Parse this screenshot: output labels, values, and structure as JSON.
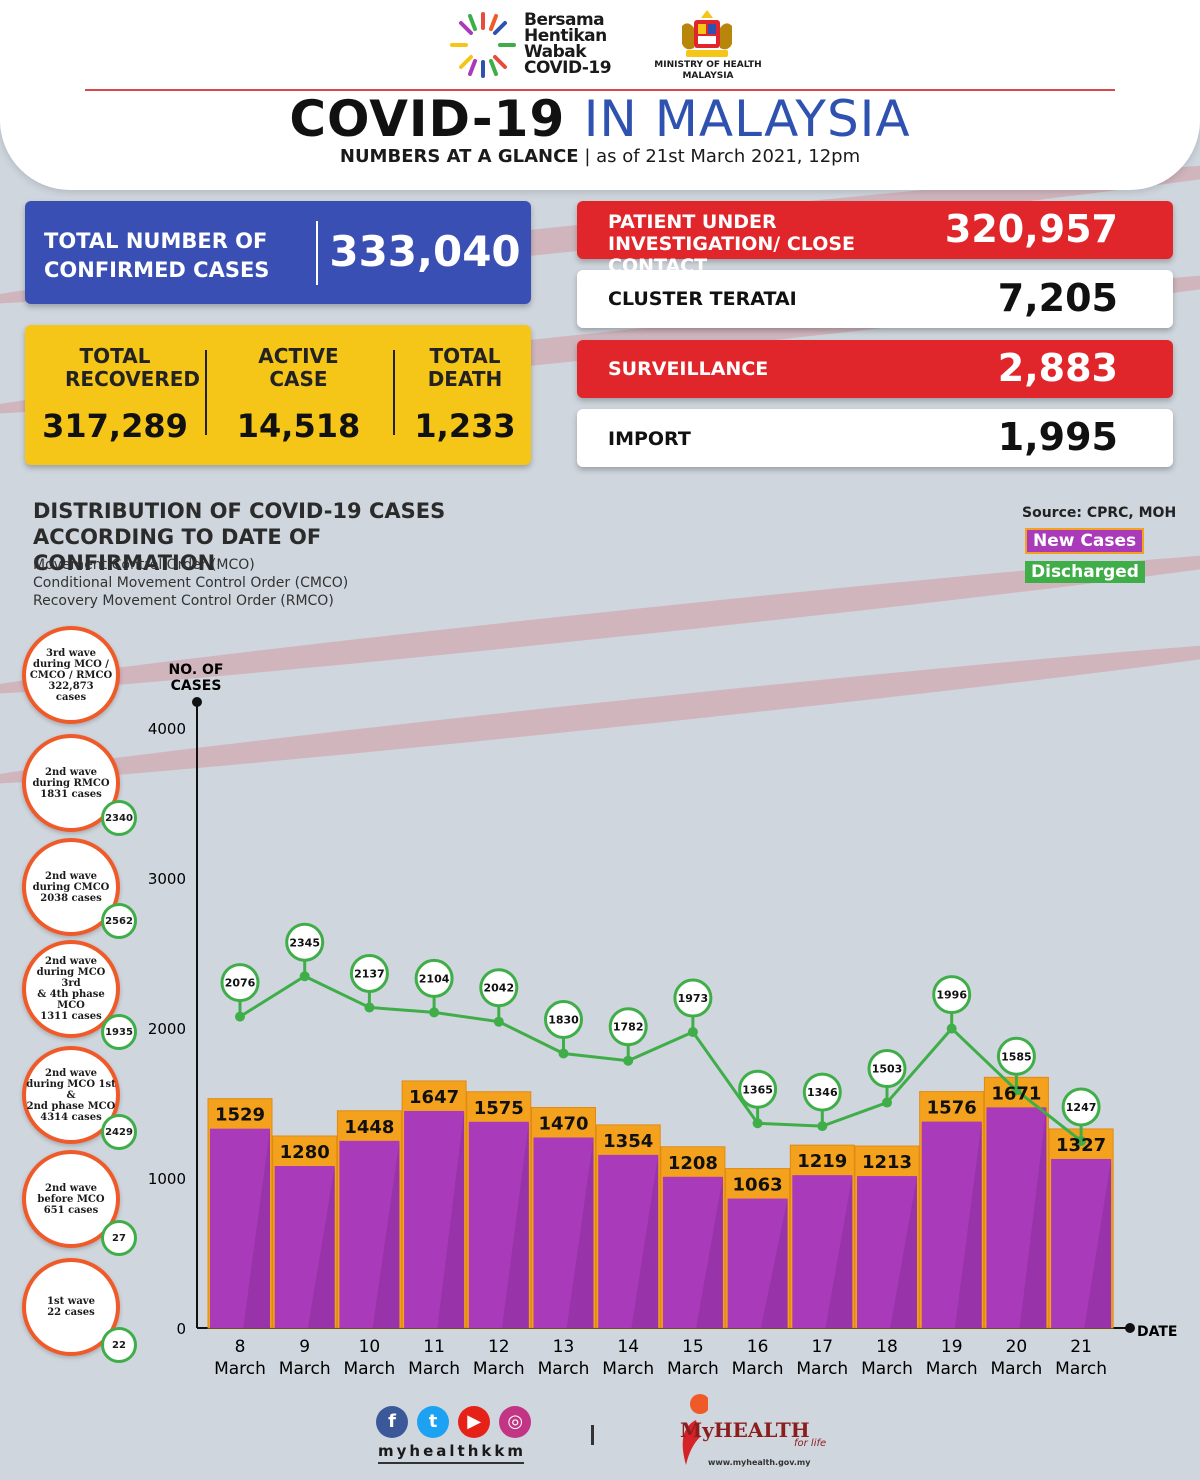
{
  "header": {
    "campaign": [
      "Bersama",
      "Hentikan",
      "Wabak",
      "COVID-19"
    ],
    "ministry": "MINISTRY OF HEALTH MALAYSIA",
    "title_a": "COVID-19",
    "title_b": "IN MALAYSIA",
    "subtitle_a": "NUMBERS AT A GLANCE",
    "subtitle_b": "as of 21st March 2021, 12pm"
  },
  "summary": {
    "confirmed_label": "TOTAL NUMBER OF CONFIRMED CASES",
    "confirmed_value": "333,040",
    "recovered_label": "TOTAL RECOVERED",
    "recovered_value": "317,289",
    "active_label": "ACTIVE CASE",
    "active_value": "14,518",
    "death_label": "TOTAL DEATH",
    "death_value": "1,233"
  },
  "right_stats": [
    {
      "label": "PATIENT UNDER INVESTIGATION/ CLOSE CONTACT",
      "value": "320,957",
      "color": "#e1262b"
    },
    {
      "label": "CLUSTER TERATAI",
      "value": "7,205",
      "color": "#ffffff"
    },
    {
      "label": "SURVEILLANCE",
      "value": "2,883",
      "color": "#e1262b"
    },
    {
      "label": "IMPORT",
      "value": "1,995",
      "color": "#ffffff"
    }
  ],
  "distribution": {
    "title": "DISTRIBUTION OF COVID-19 CASES ACCORDING TO DATE OF CONFIRMATION",
    "sub": [
      "Movement Control Order (MCO)",
      "Conditional Movement Control Order (CMCO)",
      "Recovery Movement Control Order (RMCO)"
    ],
    "source": "Source: CPRC, MOH",
    "legend_new": "New Cases",
    "legend_discharged": "Discharged"
  },
  "waves": [
    {
      "text": "3rd wave\nduring MCO /\nCMCO / RMCO\n322,873\ncases",
      "discharged": ""
    },
    {
      "text": "2nd wave\nduring RMCO\n1831 cases",
      "discharged": "2340"
    },
    {
      "text": "2nd wave\nduring CMCO\n2038 cases",
      "discharged": "2562"
    },
    {
      "text": "2nd wave\nduring MCO 3rd\n& 4th phase MCO\n1311 cases",
      "discharged": "1935"
    },
    {
      "text": "2nd wave\nduring MCO 1st &\n2nd phase MCO\n4314 cases",
      "discharged": "2429"
    },
    {
      "text": "2nd wave\nbefore MCO\n651 cases",
      "discharged": "27"
    },
    {
      "text": "1st wave\n22 cases",
      "discharged": "22"
    }
  ],
  "chart_data": {
    "type": "bar",
    "ylabel": "NO. OF CASES",
    "xlabel": "DATE",
    "ylim": [
      0,
      4000
    ],
    "yticks": [
      0,
      1000,
      2000,
      3000,
      4000
    ],
    "categories": [
      "8 March",
      "9 March",
      "10 March",
      "11 March",
      "12 March",
      "13 March",
      "14 March",
      "15 March",
      "16 March",
      "17 March",
      "18 March",
      "19 March",
      "20 March",
      "21 March"
    ],
    "series": [
      {
        "name": "New Cases",
        "type": "bar",
        "color": "#a93bba",
        "values": [
          1529,
          1280,
          1448,
          1647,
          1575,
          1470,
          1354,
          1208,
          1063,
          1219,
          1213,
          1576,
          1671,
          1327
        ]
      },
      {
        "name": "Discharged",
        "type": "line",
        "color": "#3fae49",
        "values": [
          2076,
          2345,
          2137,
          2104,
          2042,
          1830,
          1782,
          1973,
          1365,
          1346,
          1503,
          1996,
          1585,
          1247
        ]
      }
    ]
  },
  "footer": {
    "handle": "myhealthkkm",
    "brand": "MyHEALTH",
    "tagline": "for life",
    "url": "www.myhealth.gov.my"
  }
}
